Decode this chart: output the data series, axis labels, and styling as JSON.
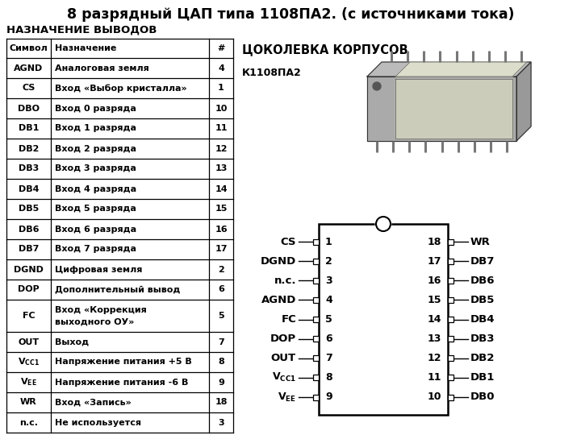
{
  "title": "8 разрядный ЦАП типа 1108ПА2. (с источниками тока)",
  "subtitle": "НАЗНАЧЕНИЕ ВЫВОДОВ",
  "table_header": [
    "Символ",
    "Назначение",
    "#"
  ],
  "table_rows": [
    [
      "AGND",
      "Аналоговая земля",
      "4"
    ],
    [
      "CS",
      "Вход «Выбор кристалла»",
      "1"
    ],
    [
      "DBO",
      "Вход 0 разряда",
      "10"
    ],
    [
      "DB1",
      "Вход 1 разряда",
      "11"
    ],
    [
      "DB2",
      "Вход 2 разряда",
      "12"
    ],
    [
      "DB3",
      "Вход 3 разряда",
      "13"
    ],
    [
      "DB4",
      "Вход 4 разряда",
      "14"
    ],
    [
      "DB5",
      "Вход 5 разряда",
      "15"
    ],
    [
      "DB6",
      "Вход 6 разряда",
      "16"
    ],
    [
      "DB7",
      "Вход 7 разряда",
      "17"
    ],
    [
      "DGND",
      "Цифровая земля",
      "2"
    ],
    [
      "DOP",
      "Дополнительный вывод",
      "6"
    ],
    [
      "FC",
      "Вход «Коррекция\nвыходного ОУ»",
      "5"
    ],
    [
      "OUT",
      "Выход",
      "7"
    ],
    [
      "VCC1",
      "Напряжение питания +5 В",
      "8"
    ],
    [
      "VEE",
      "Напряжение питания -6 В",
      "9"
    ],
    [
      "WR",
      "Вход «Запись»",
      "18"
    ],
    [
      "n.c.",
      "Не используется",
      "3"
    ]
  ],
  "right_title": "ЦОКОЛЕВКА КОРПУСОВ",
  "chip_label": "К1108ПА2",
  "left_pins": [
    "CS",
    "DGND",
    "n.c.",
    "AGND",
    "FC",
    "DOP",
    "OUT",
    "VCC1",
    "VEE"
  ],
  "left_nums": [
    "1",
    "2",
    "3",
    "4",
    "5",
    "6",
    "7",
    "8",
    "9"
  ],
  "right_pins": [
    "WR",
    "DB7",
    "DB6",
    "DB5",
    "DB4",
    "DB3",
    "DB2",
    "DB1",
    "DB0"
  ],
  "right_nums": [
    "18",
    "17",
    "16",
    "15",
    "14",
    "13",
    "12",
    "11",
    "10"
  ],
  "bg_color": "#ffffff",
  "text_color": "#000000",
  "line_color": "#000000"
}
